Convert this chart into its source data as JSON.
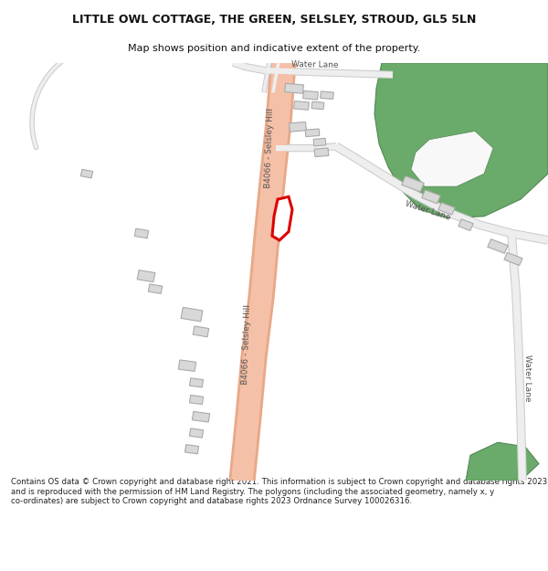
{
  "title_line1": "LITTLE OWL COTTAGE, THE GREEN, SELSLEY, STROUD, GL5 5LN",
  "title_line2": "Map shows position and indicative extent of the property.",
  "footer_text": "Contains OS data © Crown copyright and database right 2021. This information is subject to Crown copyright and database rights 2023 and is reproduced with the permission of HM Land Registry. The polygons (including the associated geometry, namely x, y co-ordinates) are subject to Crown copyright and database rights 2023 Ordnance Survey 100026316.",
  "bg_color": "#ffffff",
  "map_bg": "#f8f8f8",
  "road_salmon": "#f5c0a8",
  "road_salmon_dark": "#e8a888",
  "grey_road_fill": "#eeeeee",
  "grey_road_edge": "#cccccc",
  "green_fill": "#6aaa6a",
  "green_edge": "#558855",
  "building_fill": "#d8d8d8",
  "building_edge": "#aaaaaa",
  "plot_color": "#dd0000",
  "text_color": "#555555",
  "title_color": "#111111",
  "footer_color": "#222222",
  "label_fontsize": 6.5,
  "title_fontsize1": 9.0,
  "title_fontsize2": 8.0,
  "footer_fontsize": 6.2
}
